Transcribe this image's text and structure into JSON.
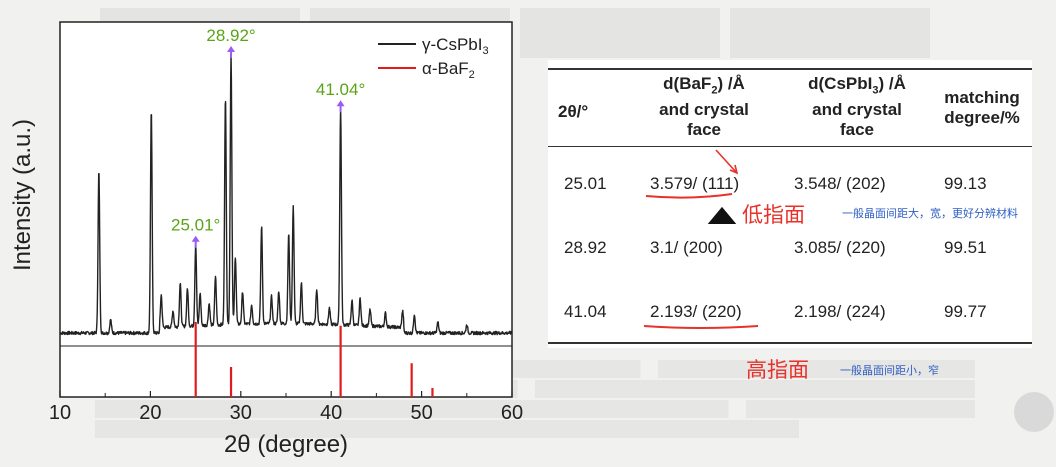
{
  "chart_data": {
    "type": "line",
    "xlabel": "2θ (degree)",
    "ylabel": "Intensity (a.u.)",
    "xlim": [
      10,
      60
    ],
    "xticks": [
      "10",
      "20",
      "30",
      "40",
      "50",
      "60"
    ],
    "legend_position": "top-right",
    "legend": [
      {
        "base": "γ-CsPbI",
        "sub": "3",
        "color": "#222222"
      },
      {
        "base": "α-BaF",
        "sub": "2",
        "color": "#e11b1b"
      }
    ],
    "series": [
      {
        "name": "γ-CsPbI3",
        "color": "#222222",
        "peaks": [
          {
            "x": 14.3,
            "h": 0.6
          },
          {
            "x": 15.6,
            "h": 0.05
          },
          {
            "x": 20.1,
            "h": 0.82
          },
          {
            "x": 21.2,
            "h": 0.12
          },
          {
            "x": 22.5,
            "h": 0.06
          },
          {
            "x": 23.3,
            "h": 0.16
          },
          {
            "x": 24.1,
            "h": 0.14
          },
          {
            "x": 25.01,
            "h": 0.3
          },
          {
            "x": 25.5,
            "h": 0.12
          },
          {
            "x": 26.5,
            "h": 0.08
          },
          {
            "x": 27.2,
            "h": 0.18
          },
          {
            "x": 28.3,
            "h": 0.84
          },
          {
            "x": 28.92,
            "h": 1.0
          },
          {
            "x": 29.4,
            "h": 0.25
          },
          {
            "x": 30.2,
            "h": 0.12
          },
          {
            "x": 31.2,
            "h": 0.07
          },
          {
            "x": 32.3,
            "h": 0.36
          },
          {
            "x": 33.4,
            "h": 0.1
          },
          {
            "x": 34.2,
            "h": 0.12
          },
          {
            "x": 35.3,
            "h": 0.33
          },
          {
            "x": 35.8,
            "h": 0.43
          },
          {
            "x": 36.7,
            "h": 0.15
          },
          {
            "x": 38.4,
            "h": 0.13
          },
          {
            "x": 39.8,
            "h": 0.06
          },
          {
            "x": 41.04,
            "h": 0.8
          },
          {
            "x": 42.3,
            "h": 0.09
          },
          {
            "x": 43.2,
            "h": 0.1
          },
          {
            "x": 44.3,
            "h": 0.06
          },
          {
            "x": 46.0,
            "h": 0.05
          },
          {
            "x": 47.9,
            "h": 0.06
          },
          {
            "x": 49.2,
            "h": 0.07
          },
          {
            "x": 51.8,
            "h": 0.04
          },
          {
            "x": 55.0,
            "h": 0.03
          }
        ]
      },
      {
        "name": "α-BaF2",
        "color": "#e11b1b",
        "sticks": [
          {
            "x": 25.01,
            "h": 1.0
          },
          {
            "x": 28.92,
            "h": 0.4
          },
          {
            "x": 41.04,
            "h": 0.95
          },
          {
            "x": 48.9,
            "h": 0.45
          },
          {
            "x": 51.2,
            "h": 0.12
          }
        ]
      }
    ],
    "annotations": [
      {
        "label": "28.92°",
        "x": 28.92,
        "h": 1.0
      },
      {
        "label": "41.04°",
        "x": 41.04,
        "h": 0.8
      },
      {
        "label": "25.01°",
        "x": 25.01,
        "h": 0.3
      }
    ],
    "annotation_color": "#5aa416",
    "arrow_color": "#9a5cf0"
  },
  "table": {
    "headers": {
      "theta": "2θ/°",
      "d_baf2_pre": "d(BaF",
      "d_baf2_sub": "2",
      "d_baf2_post": ") /Å",
      "d_cspbi3_pre": "d(CsPbI",
      "d_cspbi3_sub": "3",
      "d_cspbi3_post": ") /Å",
      "and_crystal": "and crystal",
      "face": "face",
      "matching": "matching",
      "degree": "degree/%"
    },
    "rows": [
      {
        "theta": "25.01",
        "baf2": "3.579/ (111)",
        "cspbi3": "3.548/ (202)",
        "match": "99.13"
      },
      {
        "theta": "28.92",
        "baf2": "3.1/  (200)",
        "cspbi3": "3.085/ (220)",
        "match": "99.51"
      },
      {
        "theta": "41.04",
        "baf2": "2.193/ (220)",
        "cspbi3": "2.198/ (224)",
        "match": "99.77"
      }
    ]
  },
  "annotations": {
    "low_index": "低指面",
    "low_index_note": "一般晶面间距大，宽，更好分辨材料",
    "high_index": "高指面",
    "high_index_note": "一般晶面间距小，窄"
  },
  "colors": {
    "annotation_red": "#e8312a",
    "annotation_blue": "#2f5fc4"
  }
}
